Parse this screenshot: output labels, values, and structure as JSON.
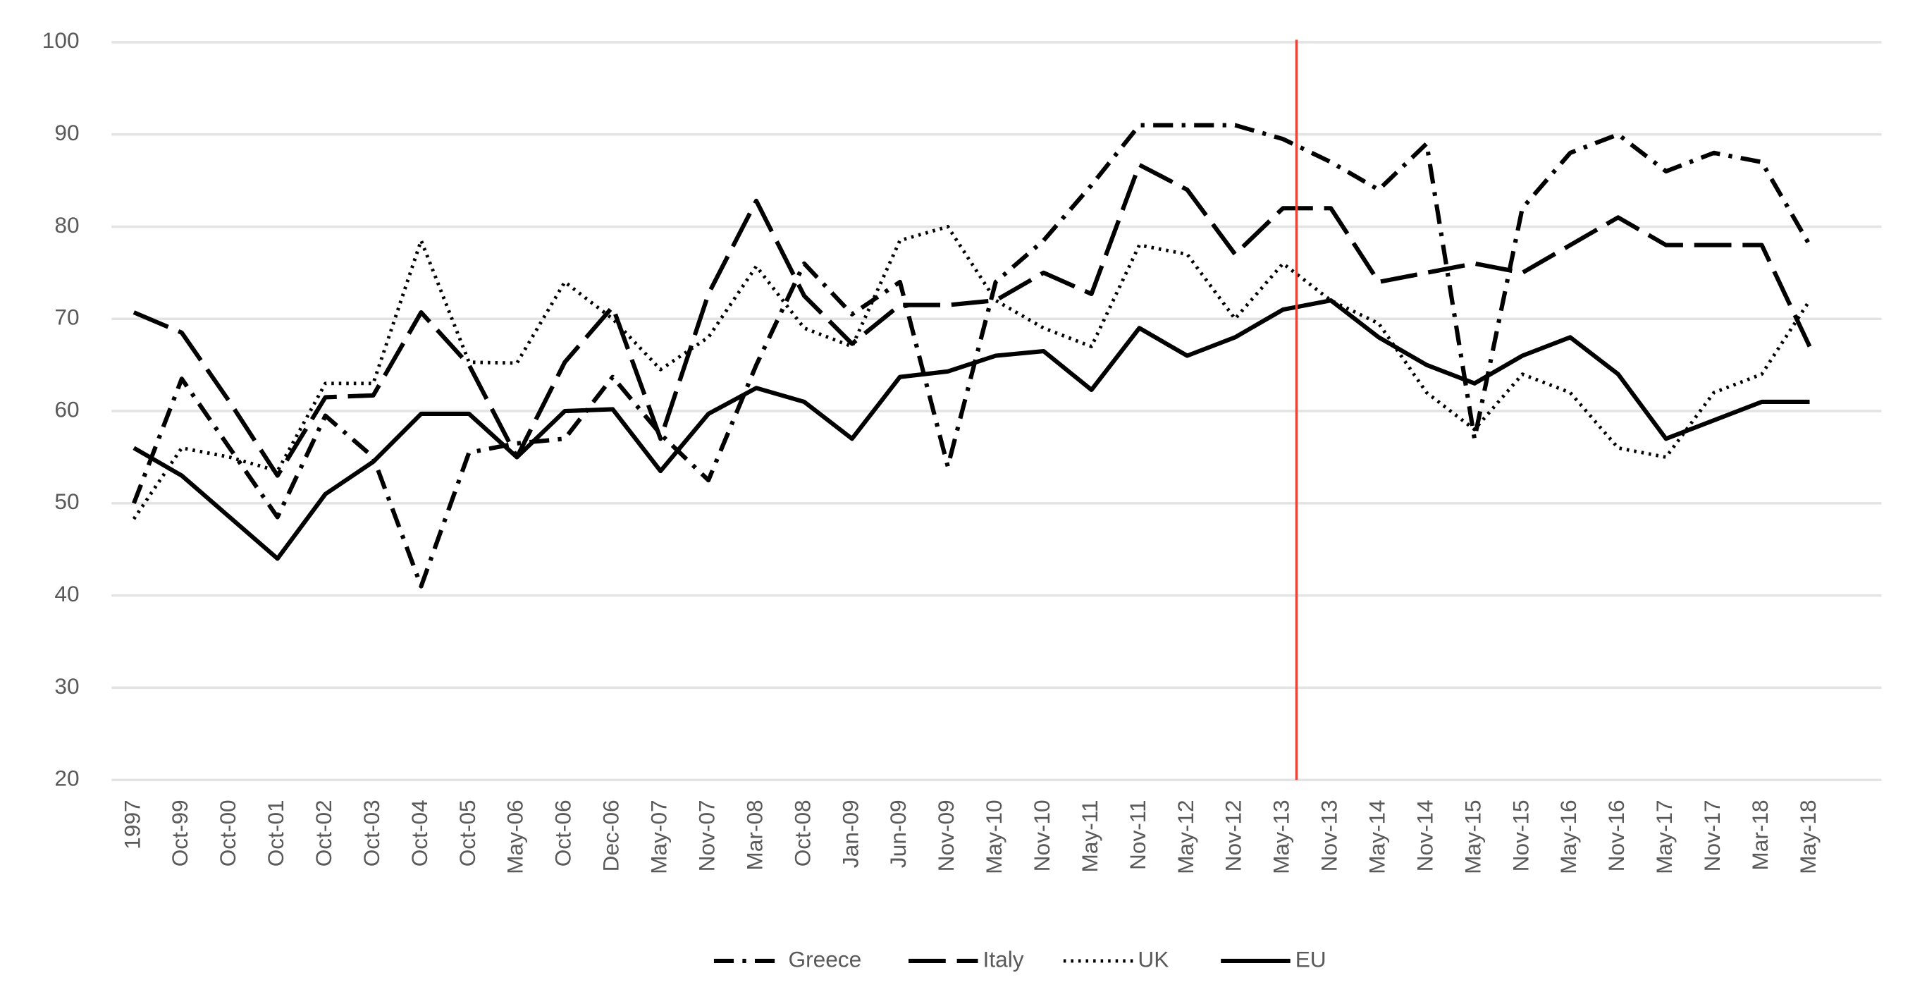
{
  "chart_data": {
    "type": "line",
    "categories": [
      "1997",
      "Oct-99",
      "Oct-00",
      "Oct-01",
      "Oct-02",
      "Oct-03",
      "Oct-04",
      "Oct-05",
      "May-06",
      "Oct-06",
      "Dec-06",
      "May-07",
      "Nov-07",
      "Mar-08",
      "Oct-08",
      "Jan-09",
      "Jun-09",
      "Nov-09",
      "May-10",
      "Nov-10",
      "May-11",
      "Nov-11",
      "May-12",
      "Nov-12",
      "May-13",
      "Nov-13",
      "May-14",
      "Nov-14",
      "May-15",
      "Nov-15",
      "May-16",
      "Nov-16",
      "May-17",
      "Nov-17",
      "Mar-18",
      "May-18"
    ],
    "series": [
      {
        "name": "Greece",
        "color": "#000000",
        "dash": "dash-dot",
        "values": [
          50,
          63.5,
          56,
          48.5,
          59.5,
          55,
          41,
          55.5,
          56.5,
          57,
          63.7,
          57.5,
          52.5,
          65,
          76,
          70.5,
          74,
          54,
          74,
          78.5,
          84.5,
          91,
          91,
          91,
          89.5,
          87,
          84,
          89,
          57,
          82,
          88,
          90,
          86,
          88,
          87,
          78
        ]
      },
      {
        "name": "Italy",
        "color": "#000000",
        "dash": "long-dash",
        "values": [
          70.7,
          68.5,
          61,
          53,
          61.5,
          61.7,
          70.7,
          65,
          55,
          65.3,
          71.3,
          57,
          72.7,
          82.8,
          72.5,
          67.3,
          71.5,
          71.5,
          72,
          75,
          72.7,
          86.7,
          84,
          77,
          82,
          82,
          74,
          75,
          76,
          75,
          78,
          81,
          78,
          78,
          78,
          67
        ]
      },
      {
        "name": "UK",
        "color": "#000000",
        "dash": "dotted",
        "values": [
          48.3,
          56,
          55,
          53.5,
          63,
          63,
          78.5,
          65.3,
          65.2,
          74,
          70,
          64.5,
          68,
          75.7,
          69,
          67,
          78.5,
          80,
          72,
          69,
          67,
          78,
          77,
          70,
          76,
          72,
          69.5,
          62,
          58,
          64,
          62,
          56,
          55,
          62,
          64,
          72
        ]
      },
      {
        "name": "EU",
        "color": "#000000",
        "dash": "solid",
        "values": [
          56,
          53,
          48.5,
          44,
          51,
          54.5,
          59.7,
          59.7,
          55,
          60,
          60.2,
          53.5,
          59.7,
          62.5,
          61,
          57,
          63.7,
          64.3,
          66,
          66.5,
          62.3,
          69,
          66,
          68,
          71,
          72,
          68,
          65,
          63,
          66,
          68,
          64,
          57,
          59,
          61,
          61
        ]
      }
    ],
    "ylim": [
      20,
      100
    ],
    "yticks": [
      20,
      30,
      40,
      50,
      60,
      70,
      80,
      90,
      100
    ],
    "grid": true,
    "legend": "bottom"
  }
}
